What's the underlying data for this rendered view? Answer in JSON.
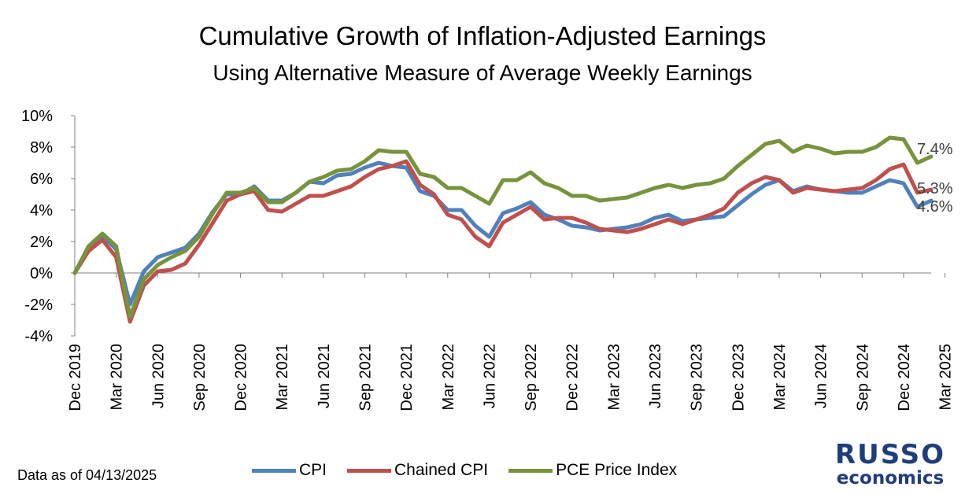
{
  "chart_data": {
    "type": "line",
    "title": "Cumulative Growth of Inflation-Adjusted Earnings",
    "subtitle": "Using Alternative Measure of Average Weekly Earnings",
    "xlabel": "",
    "ylabel": "",
    "ylim": [
      -4,
      10
    ],
    "yticks": [
      "10%",
      "8%",
      "6%",
      "4%",
      "2%",
      "0%",
      "-2%",
      "-4%"
    ],
    "x_tick_labels": [
      "Dec 2019",
      "Mar 2020",
      "Jun 2020",
      "Sep 2020",
      "Dec 2020",
      "Mar 2021",
      "Jun 2021",
      "Sep 2021",
      "Dec 2021",
      "Mar 2022",
      "Jun 2022",
      "Sep 2022",
      "Dec 2022",
      "Mar 2023",
      "Jun 2023",
      "Sep 2023",
      "Dec 2023",
      "Mar 2024",
      "Jun 2024",
      "Sep 2024",
      "Dec 2024",
      "Mar 2025"
    ],
    "x_start": "Dec 2019",
    "x_end": "Mar 2025",
    "grid": false,
    "legend_position": "bottom",
    "series": [
      {
        "name": "CPI",
        "color": "#4f81bd",
        "end_label": "4.6%",
        "values": [
          0.0,
          1.6,
          2.4,
          1.5,
          -2.0,
          0.1,
          1.0,
          1.3,
          1.6,
          2.5,
          3.9,
          5.0,
          5.0,
          5.5,
          4.6,
          4.6,
          5.1,
          5.8,
          5.7,
          6.2,
          6.3,
          6.7,
          7.0,
          6.8,
          6.7,
          5.2,
          4.9,
          4.0,
          4.0,
          3.0,
          2.3,
          3.8,
          4.1,
          4.5,
          3.7,
          3.4,
          3.0,
          2.9,
          2.7,
          2.8,
          2.9,
          3.1,
          3.5,
          3.7,
          3.3,
          3.4,
          3.5,
          3.6,
          4.3,
          5.0,
          5.6,
          5.9,
          5.2,
          5.5,
          5.3,
          5.2,
          5.1,
          5.1,
          5.5,
          5.9,
          5.7,
          4.2,
          4.6
        ]
      },
      {
        "name": "Chained CPI",
        "color": "#c0504d",
        "end_label": "5.3%",
        "values": [
          0.0,
          1.4,
          2.1,
          1.0,
          -3.1,
          -0.8,
          0.1,
          0.2,
          0.6,
          1.8,
          3.2,
          4.6,
          5.0,
          5.2,
          4.0,
          3.9,
          4.4,
          4.9,
          4.9,
          5.2,
          5.5,
          6.1,
          6.6,
          6.8,
          7.1,
          5.6,
          5.0,
          3.7,
          3.4,
          2.3,
          1.7,
          3.2,
          3.7,
          4.2,
          3.4,
          3.5,
          3.5,
          3.2,
          2.8,
          2.7,
          2.6,
          2.8,
          3.1,
          3.4,
          3.1,
          3.4,
          3.7,
          4.1,
          5.1,
          5.7,
          6.1,
          5.9,
          5.1,
          5.4,
          5.3,
          5.2,
          5.3,
          5.4,
          5.9,
          6.6,
          6.9,
          5.1,
          5.3
        ]
      },
      {
        "name": "PCE Price Index",
        "color": "#77933c",
        "end_label": "7.4%",
        "values": [
          0.0,
          1.7,
          2.5,
          1.7,
          -2.8,
          -0.4,
          0.5,
          1.0,
          1.4,
          2.3,
          3.8,
          5.1,
          5.1,
          5.4,
          4.5,
          4.5,
          5.1,
          5.8,
          6.1,
          6.5,
          6.6,
          7.1,
          7.8,
          7.7,
          7.7,
          6.3,
          6.1,
          5.4,
          5.4,
          4.9,
          4.4,
          5.9,
          5.9,
          6.4,
          5.7,
          5.4,
          4.9,
          4.9,
          4.6,
          4.7,
          4.8,
          5.1,
          5.4,
          5.6,
          5.4,
          5.6,
          5.7,
          6.0,
          6.8,
          7.5,
          8.2,
          8.4,
          7.7,
          8.1,
          7.9,
          7.6,
          7.7,
          7.7,
          8.0,
          8.6,
          8.5,
          7.0,
          7.4
        ]
      }
    ]
  },
  "footer": {
    "data_note": "Data as of 04/13/2025",
    "logo_line1": "RUSSO",
    "logo_line2": "economics"
  }
}
